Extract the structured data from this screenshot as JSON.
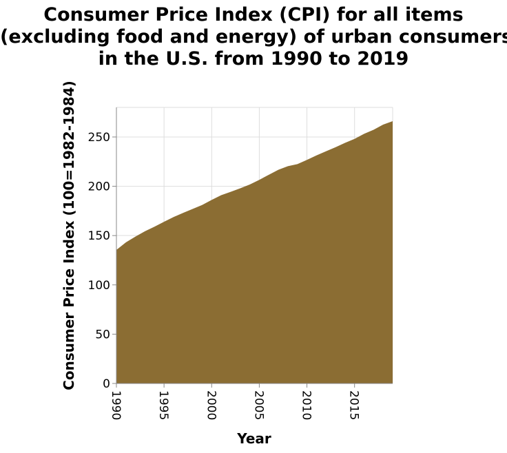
{
  "chart_data": {
    "type": "area",
    "title_lines": [
      "Consumer Price Index (CPI) for all items",
      "(excluding food and energy) of urban consumers",
      "in the U.S. from 1990 to 2019"
    ],
    "xlabel": "Year",
    "ylabel": "Consumer Price Index (100=1982-1984)",
    "x": [
      1990,
      1991,
      1992,
      1993,
      1994,
      1995,
      1996,
      1997,
      1998,
      1999,
      2000,
      2001,
      2002,
      2003,
      2004,
      2005,
      2006,
      2007,
      2008,
      2009,
      2010,
      2011,
      2012,
      2013,
      2014,
      2015,
      2016,
      2017,
      2018,
      2019
    ],
    "y": [
      135.5,
      143.1,
      149.0,
      154.4,
      159.0,
      164.0,
      168.8,
      173.0,
      177.0,
      181.0,
      186.2,
      191.0,
      194.4,
      198.0,
      201.8,
      206.5,
      211.7,
      216.7,
      220.4,
      222.5,
      226.8,
      231.3,
      235.5,
      239.6,
      244.0,
      248.1,
      253.2,
      257.3,
      262.5,
      266.0
    ],
    "xlim": [
      1990,
      2019
    ],
    "ylim": [
      0,
      280
    ],
    "x_ticks": [
      1990,
      1995,
      2000,
      2005,
      2010,
      2015
    ],
    "y_ticks": [
      0,
      50,
      100,
      150,
      200,
      250
    ],
    "grid": true,
    "fill_color": "#8b6d33",
    "grid_color": "#dddddd",
    "axis_color": "#888888"
  }
}
